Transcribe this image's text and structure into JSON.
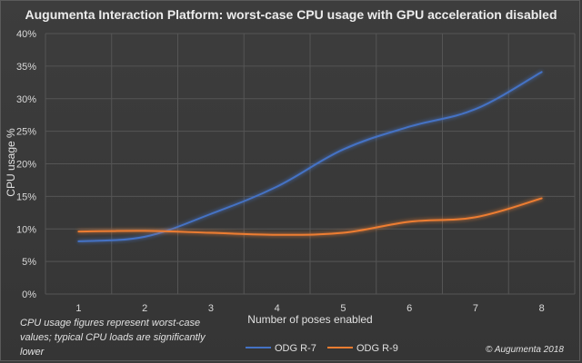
{
  "chart_data": {
    "type": "line",
    "title": "Augumenta Interaction Platform: worst-case CPU usage with GPU acceleration disabled",
    "xlabel": "Number of poses enabled",
    "ylabel": "CPU usage %",
    "categories": [
      "1",
      "2",
      "3",
      "4",
      "5",
      "6",
      "7",
      "8"
    ],
    "ylim": [
      0,
      40
    ],
    "yticks": [
      "0%",
      "5%",
      "10%",
      "15%",
      "20%",
      "25%",
      "30%",
      "35%",
      "40%"
    ],
    "ytick_values": [
      0,
      5,
      10,
      15,
      20,
      25,
      30,
      35,
      40
    ],
    "grid": true,
    "legend_position": "bottom",
    "series": [
      {
        "name": "ODG R-7",
        "color": "#4472c4",
        "values": [
          8.1,
          8.8,
          12.3,
          16.5,
          22.2,
          25.7,
          28.4,
          34.1
        ]
      },
      {
        "name": "ODG R-9",
        "color": "#ed7d31",
        "values": [
          9.6,
          9.7,
          9.4,
          9.1,
          9.4,
          11.1,
          11.8,
          14.7
        ]
      }
    ],
    "note": [
      "CPU usage figures represent worst-case",
      "values; typical CPU loads are significantly",
      "lower"
    ],
    "copyright": "© Augumenta 2018"
  }
}
